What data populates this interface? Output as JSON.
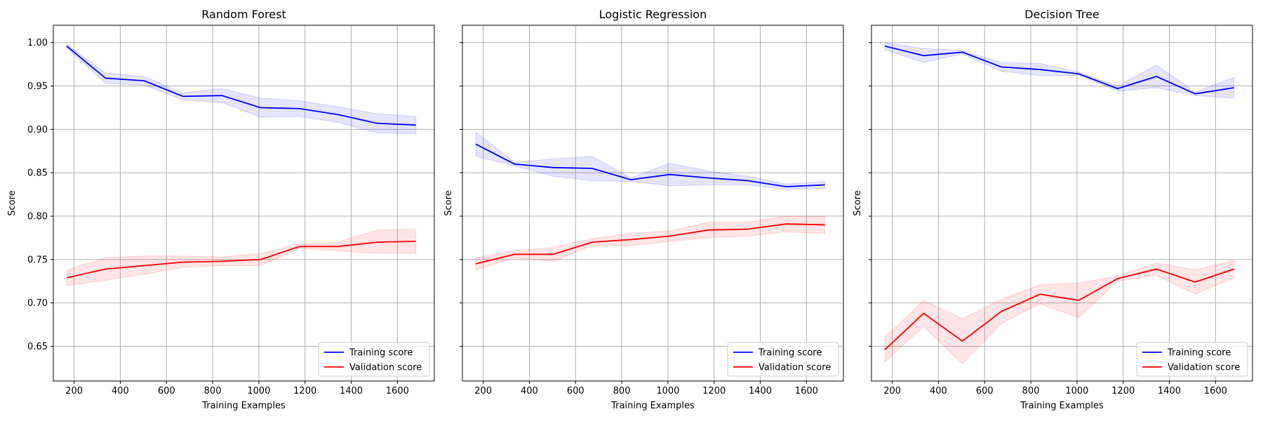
{
  "chart_data": [
    {
      "type": "line",
      "title": "Random Forest",
      "xlabel": "Training Examples",
      "ylabel": "Score",
      "xlim": [
        110,
        1760
      ],
      "ylim": [
        0.61,
        1.02
      ],
      "xticks": [
        200,
        400,
        600,
        800,
        1000,
        1200,
        1400,
        1600
      ],
      "yticks": [
        0.65,
        0.7,
        0.75,
        0.8,
        0.85,
        0.9,
        0.95,
        1.0
      ],
      "show_ytick_labels": true,
      "grid": true,
      "legend_position": "lower-right",
      "x": [
        168,
        336,
        504,
        672,
        840,
        1008,
        1176,
        1344,
        1512,
        1680
      ],
      "series": [
        {
          "name": "Training score",
          "color": "#0000ff",
          "band_color": "#0000ff",
          "values": [
            0.996,
            0.959,
            0.956,
            0.938,
            0.939,
            0.925,
            0.924,
            0.917,
            0.907,
            0.905
          ],
          "lower": [
            0.994,
            0.953,
            0.951,
            0.934,
            0.931,
            0.914,
            0.915,
            0.908,
            0.896,
            0.895
          ],
          "upper": [
            0.998,
            0.965,
            0.961,
            0.942,
            0.947,
            0.936,
            0.933,
            0.926,
            0.918,
            0.915
          ]
        },
        {
          "name": "Validation score",
          "color": "#ff0000",
          "band_color": "#ff0000",
          "values": [
            0.729,
            0.739,
            0.743,
            0.747,
            0.748,
            0.75,
            0.765,
            0.765,
            0.77,
            0.771
          ],
          "lower": [
            0.72,
            0.726,
            0.733,
            0.741,
            0.743,
            0.743,
            0.763,
            0.76,
            0.757,
            0.757
          ],
          "upper": [
            0.738,
            0.752,
            0.754,
            0.754,
            0.753,
            0.757,
            0.768,
            0.77,
            0.784,
            0.785
          ]
        }
      ]
    },
    {
      "type": "line",
      "title": "Logistic Regression",
      "xlabel": "Training Examples",
      "ylabel": "Score",
      "xlim": [
        110,
        1760
      ],
      "ylim": [
        0.61,
        1.02
      ],
      "xticks": [
        200,
        400,
        600,
        800,
        1000,
        1200,
        1400,
        1600
      ],
      "yticks": [
        0.65,
        0.7,
        0.75,
        0.8,
        0.85,
        0.9,
        0.95,
        1.0
      ],
      "show_ytick_labels": false,
      "grid": true,
      "legend_position": "lower-right",
      "x": [
        168,
        336,
        504,
        672,
        840,
        1008,
        1176,
        1344,
        1512,
        1680
      ],
      "series": [
        {
          "name": "Training score",
          "color": "#0000ff",
          "band_color": "#0000ff",
          "values": [
            0.883,
            0.86,
            0.856,
            0.855,
            0.842,
            0.848,
            0.844,
            0.841,
            0.834,
            0.836
          ],
          "lower": [
            0.869,
            0.858,
            0.846,
            0.841,
            0.84,
            0.835,
            0.836,
            0.836,
            0.831,
            0.832
          ],
          "upper": [
            0.897,
            0.862,
            0.866,
            0.869,
            0.844,
            0.861,
            0.852,
            0.846,
            0.837,
            0.84
          ]
        },
        {
          "name": "Validation score",
          "color": "#ff0000",
          "band_color": "#ff0000",
          "values": [
            0.745,
            0.756,
            0.756,
            0.77,
            0.773,
            0.777,
            0.784,
            0.785,
            0.791,
            0.79
          ],
          "lower": [
            0.738,
            0.752,
            0.748,
            0.766,
            0.766,
            0.771,
            0.775,
            0.777,
            0.782,
            0.78
          ],
          "upper": [
            0.752,
            0.76,
            0.764,
            0.774,
            0.78,
            0.783,
            0.793,
            0.793,
            0.8,
            0.8
          ]
        }
      ]
    },
    {
      "type": "line",
      "title": "Decision Tree",
      "xlabel": "Training Examples",
      "ylabel": "Score",
      "xlim": [
        110,
        1760
      ],
      "ylim": [
        0.61,
        1.02
      ],
      "xticks": [
        200,
        400,
        600,
        800,
        1000,
        1200,
        1400,
        1600
      ],
      "yticks": [
        0.65,
        0.7,
        0.75,
        0.8,
        0.85,
        0.9,
        0.95,
        1.0
      ],
      "show_ytick_labels": false,
      "grid": true,
      "legend_position": "lower-right",
      "x": [
        168,
        336,
        504,
        672,
        840,
        1008,
        1176,
        1344,
        1512,
        1680
      ],
      "series": [
        {
          "name": "Training score",
          "color": "#0000ff",
          "band_color": "#0000ff",
          "values": [
            0.996,
            0.985,
            0.989,
            0.972,
            0.969,
            0.964,
            0.947,
            0.961,
            0.941,
            0.948
          ],
          "lower": [
            0.992,
            0.977,
            0.987,
            0.967,
            0.962,
            0.962,
            0.944,
            0.948,
            0.939,
            0.936
          ],
          "upper": [
            1.0,
            0.993,
            0.991,
            0.977,
            0.976,
            0.966,
            0.95,
            0.974,
            0.943,
            0.96
          ]
        },
        {
          "name": "Validation score",
          "color": "#ff0000",
          "band_color": "#ff0000",
          "values": [
            0.646,
            0.688,
            0.656,
            0.69,
            0.71,
            0.703,
            0.728,
            0.739,
            0.724,
            0.739
          ],
          "lower": [
            0.632,
            0.673,
            0.63,
            0.676,
            0.699,
            0.683,
            0.725,
            0.732,
            0.71,
            0.729
          ],
          "upper": [
            0.66,
            0.703,
            0.682,
            0.704,
            0.721,
            0.723,
            0.731,
            0.746,
            0.738,
            0.749
          ]
        }
      ]
    }
  ]
}
